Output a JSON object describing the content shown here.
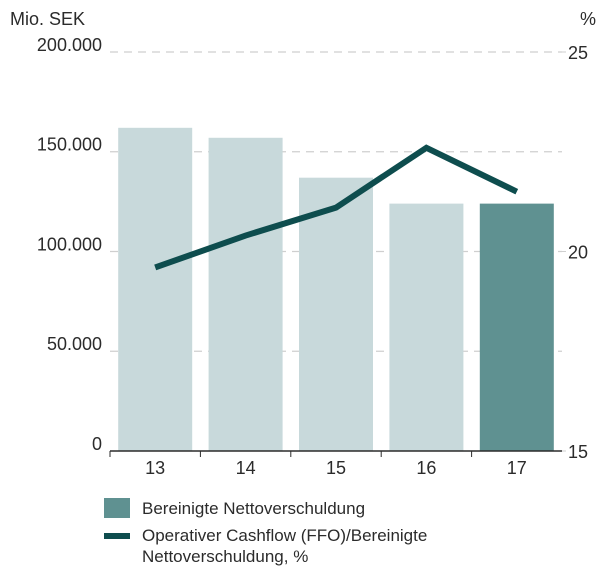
{
  "chart_data": {
    "type": "bar-line",
    "y_label": "Mio. SEK",
    "y2_label": "%",
    "categories": [
      "13",
      "14",
      "15",
      "16",
      "17"
    ],
    "series": [
      {
        "name": "Bereinigte Nettoverschuldung",
        "type": "bar",
        "color": "#5f9191",
        "colors": [
          "#c8d9db",
          "#c8d9db",
          "#c8d9db",
          "#c8d9db",
          "#5f9191"
        ],
        "values": [
          162000,
          157000,
          137000,
          124000,
          124000
        ]
      },
      {
        "name": "Operativer Cashflow (FFO)/Bereinigte Nettoverschuldung, %",
        "type": "line",
        "axis": "y2",
        "color": "#0e4d4e",
        "values": [
          19.6,
          20.4,
          21.1,
          22.6,
          21.5
        ]
      }
    ],
    "ylim": [
      0,
      200000
    ],
    "yticks": [
      {
        "value": 0,
        "label": "0"
      },
      {
        "value": 50000,
        "label": "50.000"
      },
      {
        "value": 100000,
        "label": "100.000"
      },
      {
        "value": 150000,
        "label": "150.000"
      },
      {
        "value": 200000,
        "label": "200.000"
      }
    ],
    "y2lim": [
      15,
      25
    ],
    "y2ticks": [
      15,
      20,
      25
    ],
    "grid": true
  }
}
